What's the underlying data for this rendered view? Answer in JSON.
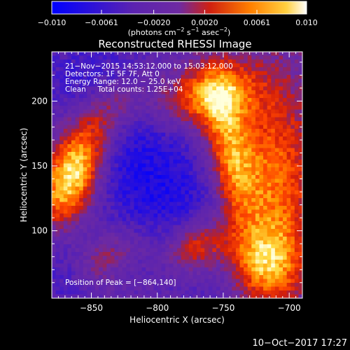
{
  "colorbar": {
    "ticks": [
      "−0.010",
      "−0.0061",
      "−0.0020",
      "0.0020",
      "0.0061",
      "0.010"
    ],
    "tick_values": [
      -0.01,
      -0.0061,
      -0.002,
      0.002,
      0.0061,
      0.01
    ],
    "range": [
      -0.01,
      0.01
    ],
    "units_parts": [
      "(photons cm",
      "−2",
      " s",
      "−1",
      " asec",
      "−2",
      ")"
    ]
  },
  "chart_data": {
    "type": "heatmap",
    "title": "Reconstructed RHESSI Image",
    "xlabel": "Heliocentric X (arcsec)",
    "ylabel": "Heliocentric Y (arcsec)",
    "xlim": [
      -880,
      -690
    ],
    "ylim": [
      48,
      238
    ],
    "x_ticks": [
      -850,
      -800,
      -750,
      -700
    ],
    "x_tick_labels": [
      "−850",
      "−800",
      "−750",
      "−700"
    ],
    "y_ticks": [
      100,
      150,
      200
    ],
    "y_tick_labels": [
      "100",
      "150",
      "200"
    ],
    "colormap": [
      "#0000ff",
      "#5b23b0",
      "#6e2aa2",
      "#b8241e",
      "#ff2600",
      "#ff8c00",
      "#ffdc40",
      "#ffffff"
    ],
    "peak_position": [
      -864,
      140
    ],
    "annotations": [
      "21−Nov−2015 14:53:12.000 to 15:03:12.000",
      "Detectors: 1F 5F 7F, Att 0",
      "Energy Range: 12.0 − 25.0 keV",
      "Clean     Total counts: 1.25E+04"
    ],
    "peak_label": "Position of Peak = [−864,140]"
  },
  "footer": {
    "date": "10−Oct−2017 17:27"
  }
}
